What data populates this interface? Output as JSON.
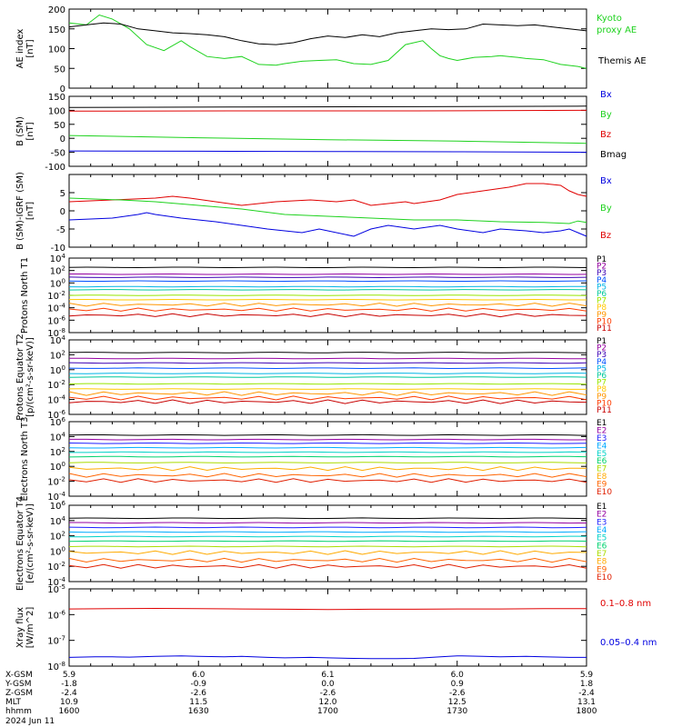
{
  "colors": {
    "black": "#000000",
    "blue": "#0000e0",
    "green": "#1ed21e",
    "red": "#e00000",
    "P": [
      "#000000",
      "#9400a0",
      "#3c00b4",
      "#0050ff",
      "#00b4e6",
      "#00c89b",
      "#96e600",
      "#ffc800",
      "#ff9600",
      "#ff3c00",
      "#c80000"
    ],
    "E": [
      "#000000",
      "#9400a0",
      "#1e1eff",
      "#00aaff",
      "#00d2c8",
      "#00d26e",
      "#aadc00",
      "#ffaa00",
      "#ff6400",
      "#e01e00"
    ]
  },
  "footer": {
    "rows": [
      {
        "label": "X-GSM",
        "values": [
          "5.9",
          "6.0",
          "6.1",
          "6.0",
          "5.9"
        ]
      },
      {
        "label": "Y-GSM",
        "values": [
          "-1.8",
          "-0.9",
          "0.0",
          "0.9",
          "1.8"
        ]
      },
      {
        "label": "Z-GSM",
        "values": [
          "-2.4",
          "-2.6",
          "-2.6",
          "-2.6",
          "-2.4"
        ]
      },
      {
        "label": "MLT",
        "values": [
          "10.9",
          "11.5",
          "12.0",
          "12.5",
          "13.1"
        ]
      },
      {
        "label": "hhmm",
        "values": [
          "1600",
          "1630",
          "1700",
          "1730",
          "1800"
        ]
      }
    ],
    "date": "2024 Jun 11"
  },
  "chart_data": [
    {
      "type": "line",
      "ylabel": "AE index [nT]",
      "ylim": [
        0,
        200
      ],
      "yticks": [
        "0",
        "50",
        "100",
        "150",
        "200"
      ],
      "series": [
        {
          "name": "Kyoto proxy AE",
          "color": "green",
          "x": [
            0,
            4,
            7,
            10,
            14,
            18,
            22,
            26,
            28,
            32,
            36,
            40,
            44,
            48,
            50,
            54,
            58,
            62,
            66,
            70,
            74,
            78,
            82,
            84,
            86,
            88,
            90,
            94,
            98,
            100,
            102,
            104,
            106,
            110,
            114,
            118,
            120
          ],
          "y": [
            165,
            160,
            185,
            175,
            150,
            110,
            95,
            120,
            105,
            80,
            75,
            80,
            60,
            58,
            62,
            68,
            70,
            72,
            62,
            60,
            70,
            110,
            120,
            100,
            82,
            75,
            70,
            78,
            80,
            82,
            80,
            78,
            75,
            72,
            60,
            55,
            50
          ]
        },
        {
          "name": "Themis AE",
          "color": "black",
          "x": [
            0,
            4,
            8,
            12,
            16,
            20,
            24,
            28,
            32,
            36,
            40,
            44,
            48,
            52,
            56,
            60,
            64,
            68,
            72,
            76,
            80,
            84,
            88,
            92,
            96,
            100,
            104,
            108,
            112,
            116,
            120
          ],
          "y": [
            155,
            160,
            165,
            162,
            150,
            145,
            140,
            138,
            135,
            130,
            120,
            112,
            110,
            115,
            125,
            132,
            128,
            135,
            130,
            140,
            145,
            150,
            148,
            150,
            162,
            160,
            158,
            160,
            155,
            150,
            145
          ]
        }
      ]
    },
    {
      "type": "line",
      "ylabel": "B (SM) [nT]",
      "ylim": [
        -100,
        150
      ],
      "yticks": [
        "-100",
        "-50",
        "0",
        "50",
        "100",
        "150"
      ],
      "series": [
        {
          "name": "Bmag",
          "color": "black",
          "x": [
            0,
            40,
            80,
            120
          ],
          "y": [
            110,
            112,
            113,
            115
          ]
        },
        {
          "name": "Bz",
          "color": "red",
          "x": [
            0,
            40,
            80,
            120
          ],
          "y": [
            97,
            98,
            98,
            100
          ]
        },
        {
          "name": "By",
          "color": "green",
          "x": [
            0,
            30,
            60,
            90,
            120
          ],
          "y": [
            10,
            2,
            -5,
            -10,
            -18
          ]
        },
        {
          "name": "Bx",
          "color": "blue",
          "x": [
            0,
            30,
            60,
            90,
            120
          ],
          "y": [
            -45,
            -46,
            -47,
            -48,
            -50
          ]
        }
      ]
    },
    {
      "type": "line",
      "ylabel": "B (SM)-IGRF (SM) [nT]",
      "ylim": [
        -10,
        10
      ],
      "yticks": [
        "-10",
        "-5",
        "0",
        "5"
      ],
      "series": [
        {
          "name": "Bz",
          "color": "red",
          "x": [
            0,
            10,
            20,
            24,
            28,
            34,
            40,
            48,
            56,
            62,
            66,
            70,
            74,
            78,
            80,
            86,
            90,
            96,
            102,
            106,
            110,
            114,
            116,
            118,
            120
          ],
          "y": [
            2.5,
            3,
            3.5,
            4,
            3.5,
            2.5,
            1.5,
            2.5,
            3,
            2.5,
            3,
            1.5,
            2,
            2.5,
            2,
            3,
            4.5,
            5.5,
            6.5,
            7.5,
            7.5,
            7,
            5.5,
            4.5,
            4
          ]
        },
        {
          "name": "By",
          "color": "green",
          "x": [
            0,
            12,
            20,
            30,
            40,
            50,
            60,
            70,
            80,
            90,
            100,
            110,
            116,
            118,
            120
          ],
          "y": [
            3.5,
            3,
            2.5,
            1.5,
            0.5,
            -1,
            -1.5,
            -2,
            -2.5,
            -2.5,
            -3,
            -3.2,
            -3.5,
            -2.8,
            -3.2
          ]
        },
        {
          "name": "Bx",
          "color": "blue",
          "x": [
            0,
            10,
            16,
            18,
            20,
            26,
            34,
            40,
            46,
            50,
            54,
            58,
            60,
            66,
            70,
            74,
            80,
            86,
            90,
            96,
            100,
            106,
            110,
            114,
            116,
            118,
            120
          ],
          "y": [
            -2.5,
            -2,
            -1,
            -0.5,
            -1,
            -2,
            -3,
            -4,
            -5,
            -5.5,
            -6,
            -5,
            -5.5,
            -7,
            -5,
            -4,
            -5,
            -4,
            -5,
            -6,
            -5,
            -5.5,
            -6,
            -5.5,
            -5,
            -6,
            -7
          ]
        }
      ]
    },
    {
      "type": "line",
      "ylabel": "Protons North T1",
      "log": true,
      "ylim": [
        -8,
        4
      ],
      "yticks": [
        "10^4",
        "10^2",
        "10^0",
        "10^-2",
        "10^-4",
        "10^-6",
        "10^-8"
      ],
      "series": [
        {
          "name": "P1",
          "color_index": 0,
          "y": 2.5
        },
        {
          "name": "P2",
          "color_index": 1,
          "y": 1.4
        },
        {
          "name": "P3",
          "color_index": 2,
          "y": 0.9
        },
        {
          "name": "P4",
          "color_index": 3,
          "y": 0.3
        },
        {
          "name": "P5",
          "color_index": 4,
          "y": -0.6
        },
        {
          "name": "P6",
          "color_index": 5,
          "y": -1.1
        },
        {
          "name": "P7",
          "color_index": 6,
          "y": -2.0
        },
        {
          "name": "P8",
          "color_index": 7,
          "y": -2.7
        },
        {
          "name": "P9",
          "color_index": 8,
          "y": -3.5
        },
        {
          "name": "P10",
          "color_index": 9,
          "y": -4.3
        },
        {
          "name": "P11",
          "color_index": 10,
          "y": -5.2
        }
      ]
    },
    {
      "type": "line",
      "ylabel": "Protons Equator T2 [p/(cm²-s-sr-keV)]",
      "log": true,
      "ylim": [
        -6,
        4
      ],
      "yticks": [
        "10^4",
        "10^2",
        "10^0",
        "10^-2",
        "10^-4",
        "10^-6"
      ],
      "series": [
        {
          "name": "P1",
          "color_index": 0,
          "y": 2.3
        },
        {
          "name": "P2",
          "color_index": 1,
          "y": 1.5
        },
        {
          "name": "P3",
          "color_index": 2,
          "y": 0.9
        },
        {
          "name": "P4",
          "color_index": 3,
          "y": 0.2
        },
        {
          "name": "P5",
          "color_index": 4,
          "y": -0.5
        },
        {
          "name": "P6",
          "color_index": 5,
          "y": -1.0
        },
        {
          "name": "P7",
          "color_index": 6,
          "y": -1.9
        },
        {
          "name": "P8",
          "color_index": 7,
          "y": -2.6
        },
        {
          "name": "P9",
          "color_index": 8,
          "y": -3.2
        },
        {
          "name": "P10",
          "color_index": 9,
          "y": -3.8
        },
        {
          "name": "P11",
          "color_index": 10,
          "y": -4.3
        }
      ]
    },
    {
      "type": "line",
      "ylabel": "Electrons North T3",
      "log": true,
      "ylim": [
        -4,
        6
      ],
      "yticks": [
        "10^6",
        "10^4",
        "10^2",
        "10^0",
        "10^-2",
        "10^-4"
      ],
      "series": [
        {
          "name": "E1",
          "color_index": 0,
          "y": 4.2
        },
        {
          "name": "E2",
          "color_index": 1,
          "y": 3.6
        },
        {
          "name": "E3",
          "color_index": 2,
          "y": 3.1
        },
        {
          "name": "E4",
          "color_index": 3,
          "y": 2.5
        },
        {
          "name": "E5",
          "color_index": 4,
          "y": 1.9
        },
        {
          "name": "E6",
          "color_index": 5,
          "y": 1.3
        },
        {
          "name": "E7",
          "color_index": 6,
          "y": 0.5
        },
        {
          "name": "E8",
          "color_index": 7,
          "y": -0.3
        },
        {
          "name": "E9",
          "color_index": 8,
          "y": -1.2
        },
        {
          "name": "E10",
          "color_index": 9,
          "y": -1.9
        }
      ]
    },
    {
      "type": "line",
      "ylabel": "Electrons Equator T4 [e/(cm²-s-sr-keV)]",
      "log": true,
      "ylim": [
        -4,
        6
      ],
      "yticks": [
        "10^6",
        "10^4",
        "10^2",
        "10^0",
        "10^-2",
        "10^-4"
      ],
      "series": [
        {
          "name": "E1",
          "color_index": 0,
          "y": 4.3
        },
        {
          "name": "E2",
          "color_index": 1,
          "y": 3.7
        },
        {
          "name": "E3",
          "color_index": 2,
          "y": 3.1
        },
        {
          "name": "E4",
          "color_index": 3,
          "y": 2.5
        },
        {
          "name": "E5",
          "color_index": 4,
          "y": 1.9
        },
        {
          "name": "E6",
          "color_index": 5,
          "y": 1.3
        },
        {
          "name": "E7",
          "color_index": 6,
          "y": 0.6
        },
        {
          "name": "E8",
          "color_index": 7,
          "y": -0.2
        },
        {
          "name": "E9",
          "color_index": 8,
          "y": -1.2
        },
        {
          "name": "E10",
          "color_index": 9,
          "y": -2.0
        }
      ]
    },
    {
      "type": "line",
      "ylabel": "Xray flux [W/m^2]",
      "log": true,
      "ylim": [
        -8,
        -5
      ],
      "yticks": [
        "10^-5",
        "10^-6",
        "10^-7",
        "10^-8"
      ],
      "series": [
        {
          "name": "0.1–0.8 nm",
          "color": "red",
          "x": [
            0,
            10,
            20,
            30,
            40,
            50,
            60,
            70,
            80,
            90,
            100,
            110,
            120
          ],
          "y": [
            -5.78,
            -5.77,
            -5.76,
            -5.77,
            -5.78,
            -5.79,
            -5.8,
            -5.79,
            -5.79,
            -5.78,
            -5.78,
            -5.77,
            -5.77
          ]
        },
        {
          "name": "0.05–0.4 nm",
          "color": "blue",
          "x": [
            0,
            6,
            10,
            14,
            20,
            26,
            30,
            36,
            40,
            46,
            50,
            56,
            60,
            66,
            70,
            76,
            80,
            84,
            88,
            90,
            96,
            100,
            106,
            110,
            116,
            120
          ],
          "y": [
            -7.66,
            -7.64,
            -7.64,
            -7.65,
            -7.62,
            -7.6,
            -7.62,
            -7.64,
            -7.62,
            -7.66,
            -7.68,
            -7.66,
            -7.68,
            -7.7,
            -7.71,
            -7.71,
            -7.7,
            -7.66,
            -7.62,
            -7.6,
            -7.62,
            -7.64,
            -7.62,
            -7.64,
            -7.66,
            -7.66
          ]
        }
      ]
    }
  ]
}
